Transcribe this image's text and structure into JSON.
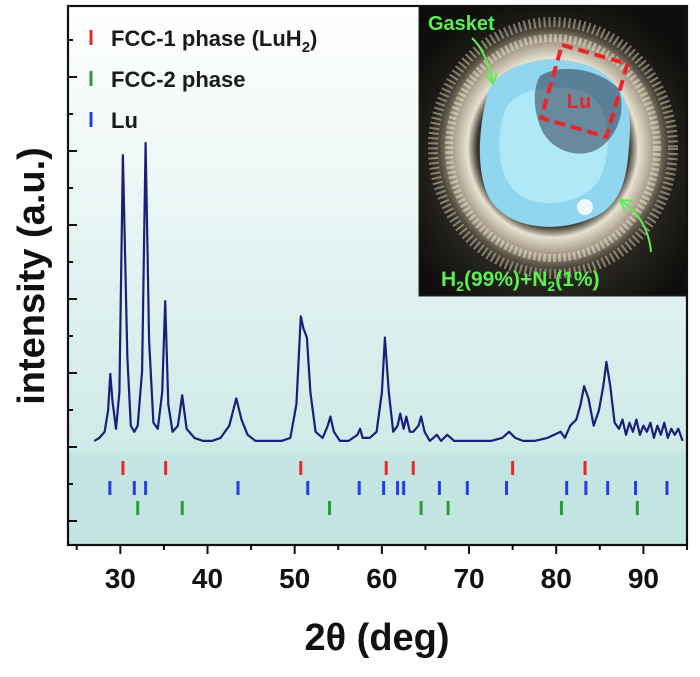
{
  "chart_data": {
    "type": "line",
    "xlabel": "2θ (deg)",
    "ylabel": "intensity (a.u.)",
    "xlim": [
      24,
      95
    ],
    "x_ticks": [
      "30",
      "40",
      "50",
      "60",
      "70",
      "80",
      "90"
    ],
    "y_ticks_labeled": false,
    "background": "#d0ebe8",
    "legend": {
      "placement": "top-left",
      "items": [
        {
          "label_main": "FCC-1 phase (LuH",
          "label_sub": "2",
          "label_end": ")",
          "color": "#e8262a"
        },
        {
          "label_main": "FCC-2 phase",
          "label_sub": "",
          "label_end": "",
          "color": "#2a9a3b"
        },
        {
          "label_main": "Lu",
          "label_sub": "",
          "label_end": "",
          "color": "#2340e6"
        }
      ]
    },
    "series": [
      {
        "color": "#1c1f7a",
        "points": [
          [
            27.0,
            0.02
          ],
          [
            27.6,
            0.03
          ],
          [
            28.2,
            0.05
          ],
          [
            28.6,
            0.12
          ],
          [
            28.85,
            0.24
          ],
          [
            29.1,
            0.15
          ],
          [
            29.5,
            0.06
          ],
          [
            29.9,
            0.18
          ],
          [
            30.3,
            0.96
          ],
          [
            30.8,
            0.3
          ],
          [
            31.2,
            0.07
          ],
          [
            31.6,
            0.05
          ],
          [
            32.0,
            0.07
          ],
          [
            32.5,
            0.25
          ],
          [
            32.9,
            1.0
          ],
          [
            33.3,
            0.35
          ],
          [
            33.8,
            0.08
          ],
          [
            34.3,
            0.06
          ],
          [
            34.8,
            0.18
          ],
          [
            35.15,
            0.48
          ],
          [
            35.5,
            0.14
          ],
          [
            36.0,
            0.05
          ],
          [
            36.6,
            0.07
          ],
          [
            37.1,
            0.17
          ],
          [
            37.6,
            0.06
          ],
          [
            38.5,
            0.03
          ],
          [
            39.5,
            0.02
          ],
          [
            40.5,
            0.02
          ],
          [
            41.5,
            0.03
          ],
          [
            42.5,
            0.07
          ],
          [
            43.3,
            0.16
          ],
          [
            43.9,
            0.09
          ],
          [
            44.6,
            0.04
          ],
          [
            45.5,
            0.02
          ],
          [
            46.5,
            0.02
          ],
          [
            47.5,
            0.02
          ],
          [
            48.5,
            0.02
          ],
          [
            49.5,
            0.03
          ],
          [
            50.2,
            0.14
          ],
          [
            50.7,
            0.43
          ],
          [
            51.0,
            0.39
          ],
          [
            51.4,
            0.36
          ],
          [
            51.8,
            0.18
          ],
          [
            52.4,
            0.05
          ],
          [
            53.2,
            0.03
          ],
          [
            53.8,
            0.07
          ],
          [
            54.1,
            0.1
          ],
          [
            54.5,
            0.05
          ],
          [
            55.2,
            0.02
          ],
          [
            56.2,
            0.02
          ],
          [
            57.2,
            0.04
          ],
          [
            57.5,
            0.06
          ],
          [
            57.8,
            0.03
          ],
          [
            58.6,
            0.03
          ],
          [
            59.4,
            0.05
          ],
          [
            60.0,
            0.18
          ],
          [
            60.35,
            0.36
          ],
          [
            60.8,
            0.18
          ],
          [
            61.3,
            0.05
          ],
          [
            61.8,
            0.07
          ],
          [
            62.1,
            0.11
          ],
          [
            62.5,
            0.06
          ],
          [
            62.8,
            0.1
          ],
          [
            63.2,
            0.05
          ],
          [
            63.6,
            0.05
          ],
          [
            64.2,
            0.07
          ],
          [
            64.5,
            0.1
          ],
          [
            64.9,
            0.05
          ],
          [
            65.5,
            0.02
          ],
          [
            66.3,
            0.04
          ],
          [
            66.8,
            0.02
          ],
          [
            67.5,
            0.04
          ],
          [
            68.3,
            0.02
          ],
          [
            69.5,
            0.02
          ],
          [
            71.0,
            0.02
          ],
          [
            72.5,
            0.02
          ],
          [
            73.8,
            0.03
          ],
          [
            74.6,
            0.05
          ],
          [
            75.3,
            0.03
          ],
          [
            76.2,
            0.02
          ],
          [
            77.5,
            0.02
          ],
          [
            79.0,
            0.03
          ],
          [
            80.5,
            0.05
          ],
          [
            81.0,
            0.03
          ],
          [
            81.6,
            0.07
          ],
          [
            82.3,
            0.09
          ],
          [
            82.8,
            0.14
          ],
          [
            83.2,
            0.2
          ],
          [
            83.7,
            0.16
          ],
          [
            84.3,
            0.07
          ],
          [
            84.9,
            0.12
          ],
          [
            85.4,
            0.2
          ],
          [
            85.75,
            0.28
          ],
          [
            86.2,
            0.2
          ],
          [
            86.7,
            0.08
          ],
          [
            87.2,
            0.06
          ],
          [
            87.6,
            0.09
          ],
          [
            88.0,
            0.04
          ],
          [
            88.4,
            0.08
          ],
          [
            88.8,
            0.05
          ],
          [
            89.2,
            0.09
          ],
          [
            89.6,
            0.04
          ],
          [
            90.0,
            0.07
          ],
          [
            90.4,
            0.05
          ],
          [
            90.8,
            0.08
          ],
          [
            91.2,
            0.03
          ],
          [
            91.6,
            0.07
          ],
          [
            92.0,
            0.04
          ],
          [
            92.4,
            0.08
          ],
          [
            92.8,
            0.03
          ],
          [
            93.2,
            0.06
          ],
          [
            93.6,
            0.04
          ],
          [
            94.0,
            0.06
          ],
          [
            94.5,
            0.02
          ]
        ]
      }
    ],
    "reference_ticks": [
      {
        "phase": "FCC-1 phase (LuH2)",
        "color": "#e8262a",
        "positions": [
          30.3,
          35.2,
          50.7,
          60.5,
          63.6,
          75.0,
          83.3
        ]
      },
      {
        "phase": "Lu",
        "color": "#2340e6",
        "positions": [
          28.8,
          31.6,
          32.9,
          43.5,
          51.5,
          57.4,
          60.2,
          61.8,
          62.5,
          66.6,
          69.8,
          74.3,
          81.2,
          83.4,
          85.9,
          89.1,
          92.7
        ]
      },
      {
        "phase": "FCC-2 phase",
        "color": "#2a9a3b",
        "positions": [
          32.0,
          37.1,
          54.0,
          64.5,
          67.6,
          80.6,
          89.3
        ]
      }
    ],
    "inset": {
      "label_gasket": "Gasket",
      "label_lu": "Lu",
      "label_gas_parts": [
        "H",
        "2",
        "(99%)+N",
        "2",
        "(1%)"
      ],
      "label_color": "#5bef4f",
      "box_color": "#e8262a"
    }
  }
}
